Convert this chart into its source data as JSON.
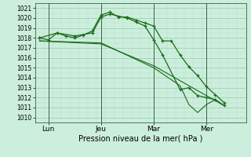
{
  "xlabel": "Pression niveau de la mer( hPa )",
  "bg_color": "#cceedd",
  "grid_major_color": "#99ccaa",
  "grid_minor_color": "#bbddc8",
  "line_color": "#1a6b1a",
  "vline_color": "#336644",
  "ylim": [
    1009.5,
    1021.5
  ],
  "yticks": [
    1010,
    1011,
    1012,
    1013,
    1014,
    1015,
    1016,
    1017,
    1018,
    1019,
    1020,
    1021
  ],
  "day_labels": [
    "Lun",
    "Jeu",
    "Mar",
    "Mer"
  ],
  "day_positions": [
    1,
    7,
    13,
    19
  ],
  "vline_positions": [
    1,
    7,
    13,
    19
  ],
  "xlim": [
    -0.5,
    23.5
  ],
  "series1_x": [
    0,
    1,
    2,
    3,
    4,
    5,
    6,
    7,
    8,
    9,
    10,
    11,
    12,
    13,
    14,
    15,
    16,
    17,
    18,
    19,
    20,
    21
  ],
  "series1_y": [
    1018.0,
    1017.8,
    1018.5,
    1018.2,
    1018.0,
    1018.3,
    1018.7,
    1020.3,
    1020.6,
    1020.1,
    1020.1,
    1019.8,
    1019.5,
    1019.2,
    1017.7,
    1017.7,
    1016.3,
    1015.1,
    1014.2,
    1013.1,
    1012.3,
    1011.5
  ],
  "series2_x": [
    0,
    2,
    4,
    6,
    7,
    8,
    10,
    11,
    12,
    13,
    14,
    16,
    17,
    18,
    19,
    20,
    21
  ],
  "series2_y": [
    1018.0,
    1018.5,
    1018.2,
    1018.5,
    1020.1,
    1020.4,
    1020.0,
    1019.6,
    1019.2,
    1017.8,
    1016.3,
    1012.8,
    1013.0,
    1012.2,
    1012.0,
    1011.8,
    1011.2
  ],
  "series3_x": [
    0,
    7,
    13,
    16,
    17,
    18,
    19,
    20,
    21
  ],
  "series3_y": [
    1017.7,
    1017.5,
    1015.0,
    1013.2,
    1011.3,
    1010.5,
    1011.3,
    1011.8,
    1011.2
  ],
  "series4_x": [
    0,
    7,
    13,
    21
  ],
  "series4_y": [
    1017.7,
    1017.4,
    1015.2,
    1011.2
  ]
}
